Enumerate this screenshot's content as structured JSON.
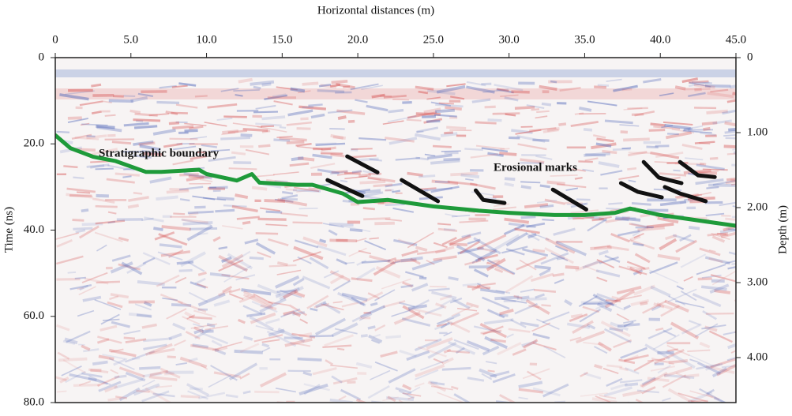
{
  "chart_data": {
    "type": "line",
    "xlabel": "Horizontal distances (m)",
    "ylabel": "Time (ns)",
    "y2label": "Depth (m)",
    "xlim": [
      0,
      45
    ],
    "xticks": [
      0,
      {
        "value": 5,
        "label": "5.0"
      },
      {
        "value": 10,
        "label": "10.0"
      },
      {
        "value": 15,
        "label": "15.0"
      },
      {
        "value": 20,
        "label": "20.0"
      },
      {
        "value": 25,
        "label": "25.0"
      },
      {
        "value": 30,
        "label": "30.0"
      },
      {
        "value": 35,
        "label": "35.0"
      },
      {
        "value": 40,
        "label": "40.0"
      },
      {
        "value": 45,
        "label": "45.0"
      }
    ],
    "ylim": [
      0,
      80
    ],
    "yticks": [
      0,
      {
        "value": 20,
        "label": "20.0"
      },
      {
        "value": 40,
        "label": "40.0"
      },
      {
        "value": 60,
        "label": "60.0"
      },
      {
        "value": 80,
        "label": "80.0"
      }
    ],
    "y2lim": [
      0,
      4.6
    ],
    "y2ticks": [
      0,
      {
        "value": 1,
        "label": "1.00"
      },
      {
        "value": 2,
        "label": "2.00"
      },
      {
        "value": 3,
        "label": "3.00"
      },
      {
        "value": 4,
        "label": "4.00"
      }
    ],
    "y_inverted": true,
    "series": [
      {
        "name": "Stratigraphic boundary",
        "color": "#1e9a3a",
        "x": [
          0,
          1,
          2.5,
          4,
          6,
          7,
          9.5,
          10,
          12,
          13,
          13.5,
          16,
          17,
          19,
          20,
          22,
          25,
          28,
          30,
          33,
          35,
          37,
          38,
          40,
          43,
          45
        ],
        "values": [
          18,
          21,
          23,
          24,
          26.5,
          26.5,
          26,
          27,
          28.5,
          27,
          29,
          29.5,
          29.5,
          31.5,
          33.5,
          33,
          34.5,
          35.5,
          36,
          36.5,
          36.5,
          36,
          35,
          36.5,
          38,
          39
        ]
      },
      {
        "name": "Erosional marks",
        "color": "#111111",
        "x": [
          19.3,
          21.3,
          null,
          18.0,
          20.3,
          null,
          22.9,
          25.3,
          null,
          27.8,
          28.3,
          29.7,
          null,
          32.9,
          35.1,
          null,
          37.4,
          38.5,
          40.1,
          null,
          38.9,
          39.9,
          41.4,
          null,
          41.3,
          42.5,
          43.6,
          null,
          40.3,
          41.3,
          43.0
        ],
        "values": [
          22.9,
          26.6,
          null,
          28.4,
          32.1,
          null,
          28.4,
          33.3,
          null,
          30.8,
          33.0,
          33.7,
          null,
          30.6,
          35.2,
          null,
          29.1,
          31.1,
          32.4,
          null,
          24.2,
          27.8,
          29.1,
          null,
          24.2,
          27.3,
          27.7,
          null,
          30.0,
          31.5,
          33.3
        ]
      }
    ]
  }
}
